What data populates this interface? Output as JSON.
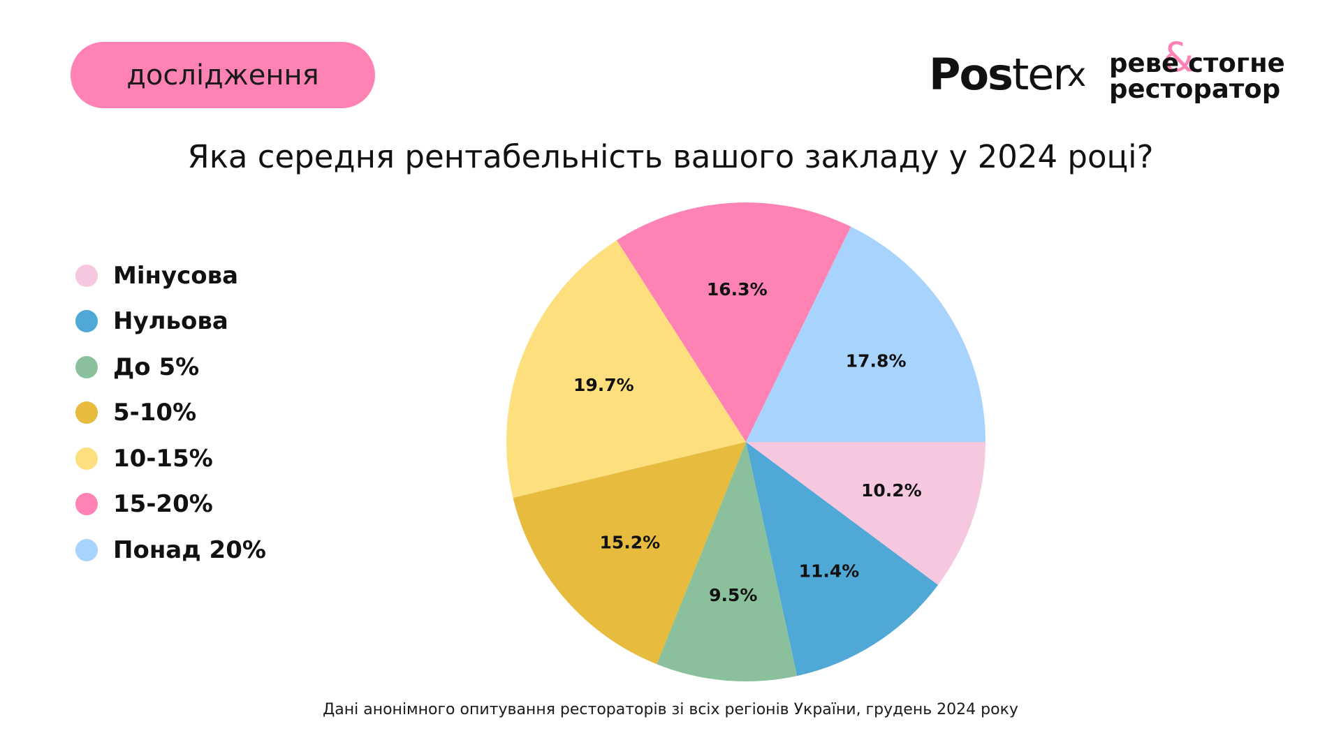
{
  "tag": "дослідження",
  "brand": {
    "poster_bold": "Pos",
    "poster_light": "ter",
    "x": "x",
    "rev_line1": "реве стогне",
    "rev_line2": "ресторатор",
    "amp": "&"
  },
  "colors": {
    "pink_light": "#f6c8e0",
    "blue": "#4fa8d6",
    "green": "#8ac09c",
    "gold": "#e6bb3e",
    "yellow": "#fde07d",
    "pink": "#ff82b4",
    "light_blue": "#a7d3fc"
  },
  "chart_data": {
    "type": "pie",
    "title": "Яка середня рентабельність вашого закладу у 2024 році?",
    "legend_position": "left",
    "start": "3 o'clock, clockwise",
    "slices": [
      {
        "label": "Мінусова",
        "value": 10.2,
        "display": "10.2%",
        "color": "#f6c8e0"
      },
      {
        "label": "Нульова",
        "value": 11.4,
        "display": "11.4%",
        "color": "#4fa8d6"
      },
      {
        "label": "До 5%",
        "value": 9.5,
        "display": "9.5%",
        "color": "#8ac09c"
      },
      {
        "label": "5-10%",
        "value": 15.2,
        "display": "15.2%",
        "color": "#e6bb3e"
      },
      {
        "label": "10-15%",
        "value": 19.7,
        "display": "19.7%",
        "color": "#fde07d"
      },
      {
        "label": "15-20%",
        "value": 16.3,
        "display": "16.3%",
        "color": "#ff82b4"
      },
      {
        "label": "Понад 20%",
        "value": 17.8,
        "display": "17.8%",
        "color": "#a7d3fc"
      }
    ]
  },
  "footnote": "Дані анонімного опитування рестораторів зі всіх регіонів України, грудень 2024 року"
}
